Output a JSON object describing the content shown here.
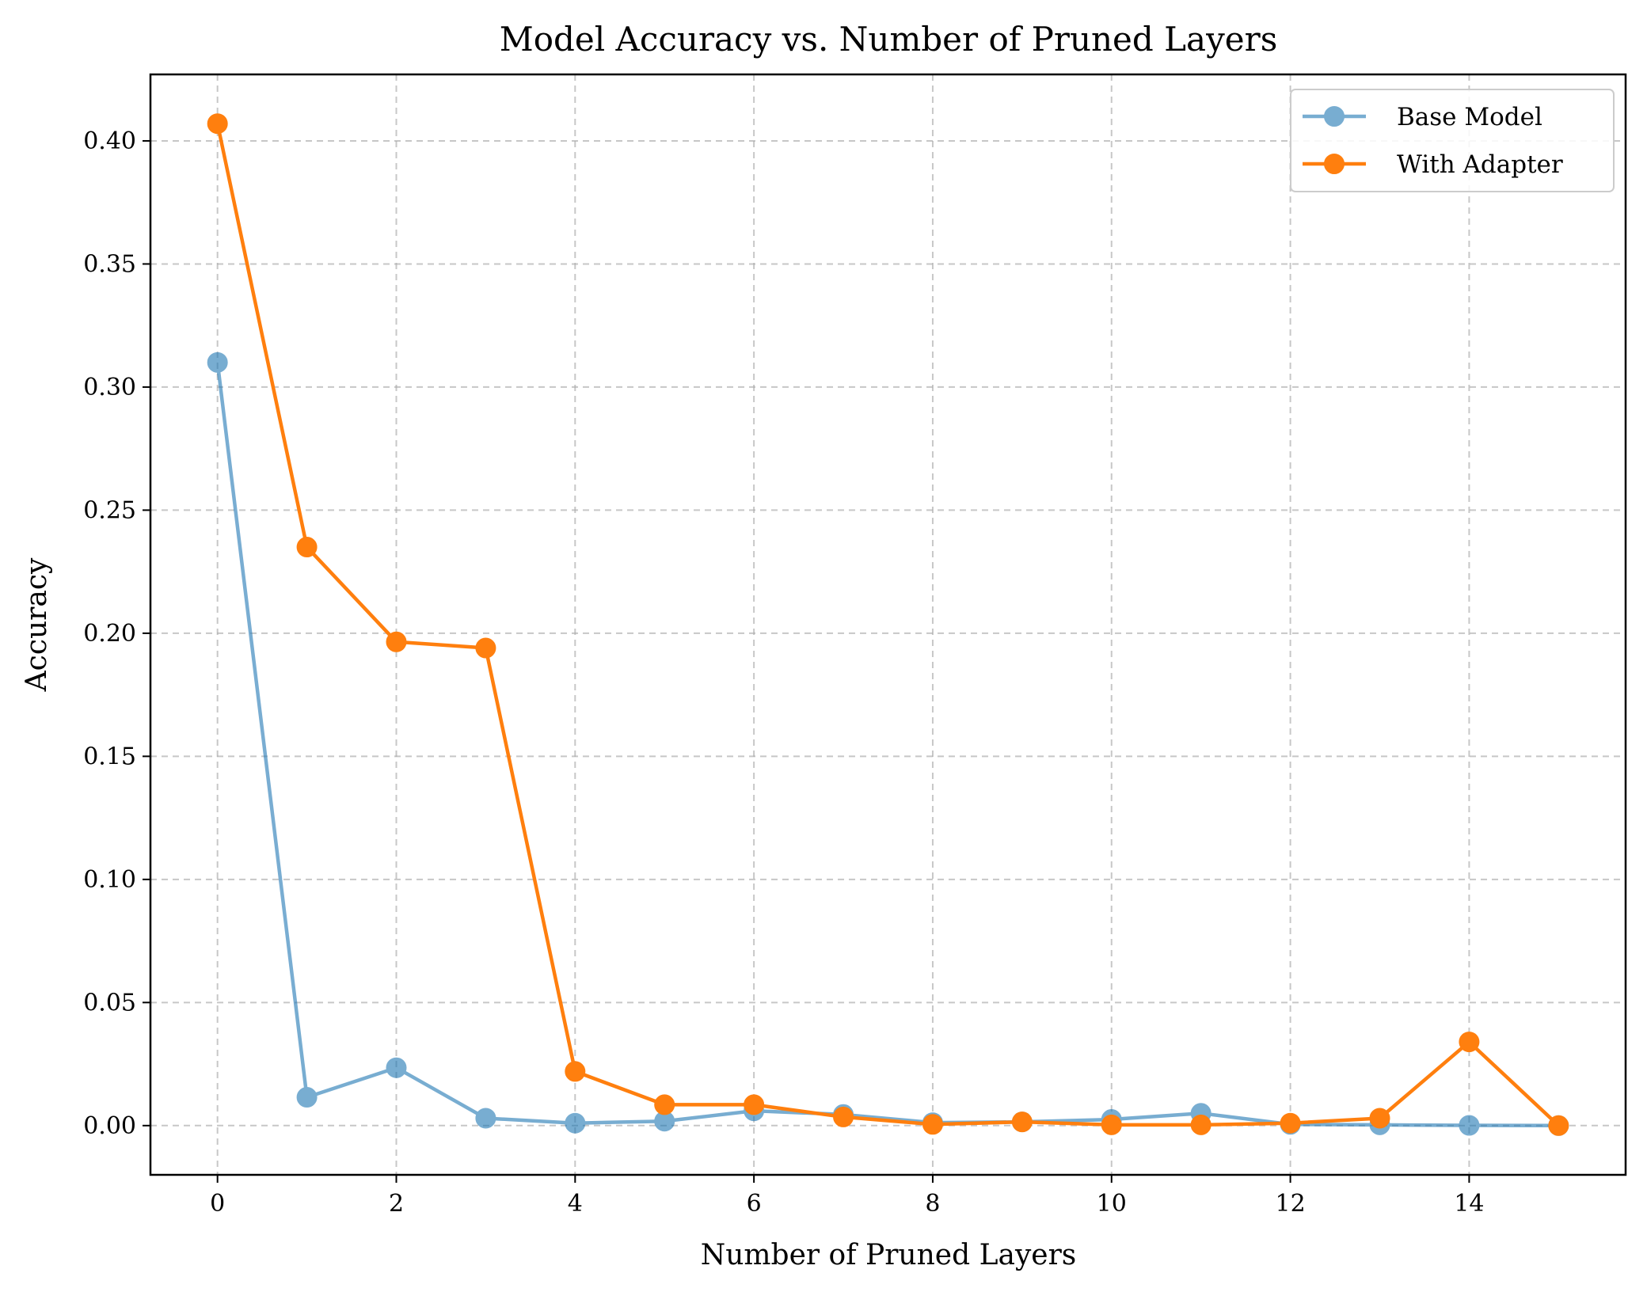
{
  "chart_data": {
    "type": "line",
    "title": "Model Accuracy vs. Number of Pruned Layers",
    "xlabel": "Number of Pruned Layers",
    "ylabel": "Accuracy",
    "x": [
      0,
      1,
      2,
      3,
      4,
      5,
      6,
      7,
      8,
      9,
      10,
      11,
      12,
      13,
      14,
      15
    ],
    "xlim": [
      -0.75,
      15.75
    ],
    "ylim": [
      -0.02,
      0.427
    ],
    "xticks": [
      0,
      2,
      4,
      6,
      8,
      10,
      12,
      14
    ],
    "xtick_labels": [
      "0",
      "2",
      "4",
      "6",
      "8",
      "10",
      "12",
      "14"
    ],
    "yticks": [
      0.0,
      0.05,
      0.1,
      0.15,
      0.2,
      0.25,
      0.3,
      0.35,
      0.4
    ],
    "ytick_labels": [
      "0.00",
      "0.05",
      "0.10",
      "0.15",
      "0.20",
      "0.25",
      "0.30",
      "0.35",
      "0.40"
    ],
    "grid": true,
    "legend_position": "top-right",
    "series": [
      {
        "name": "Base Model",
        "color": "#1f77b4",
        "alpha": 0.6,
        "marker": "circle",
        "values": [
          0.31,
          0.0115,
          0.0235,
          0.003,
          0.001,
          0.0018,
          0.006,
          0.0045,
          0.0012,
          0.0015,
          0.0025,
          0.005,
          0.0005,
          0.0003,
          0.0001,
          0.0
        ]
      },
      {
        "name": "With Adapter",
        "color": "#ff7f0e",
        "alpha": 1.0,
        "marker": "circle",
        "values": [
          0.407,
          0.235,
          0.1965,
          0.194,
          0.022,
          0.0085,
          0.0085,
          0.0035,
          0.0005,
          0.0015,
          0.0003,
          0.0003,
          0.001,
          0.003,
          0.034,
          0.0
        ]
      }
    ]
  }
}
